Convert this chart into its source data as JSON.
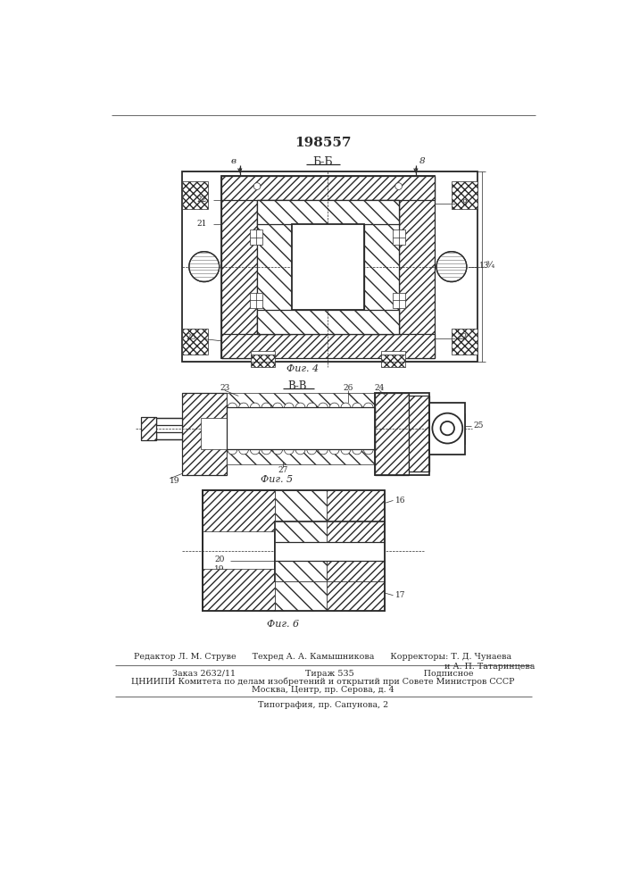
{
  "patent_number": "198557",
  "bg_color": "#ffffff",
  "line_color": "#2a2a2a",
  "fig_width": 7.07,
  "fig_height": 10.0,
  "editor_line": "Редактор Л. М. Струве      Техред А. А. Камышникова      Корректоры: Т. Д. Чунаева",
  "editor_line2": "и А. П. Татаринцева",
  "order_line": "Заказ 2632/11                          Тираж 535                          Подписное",
  "cniip_line": "ЦНИИПИ Комитета по делам изобретений и открытий при Совете Министров СССР",
  "address_line": "Москва, Центр, пр. Серова, д. 4",
  "print_line": "Типография, пр. Сапунова, 2",
  "fig4_label": "Фиг. 4",
  "fig5_label": "Фиг. 5",
  "fig6_label": "Фиг. 6",
  "section_bb": "Б-Б",
  "section_vv": "В-В"
}
